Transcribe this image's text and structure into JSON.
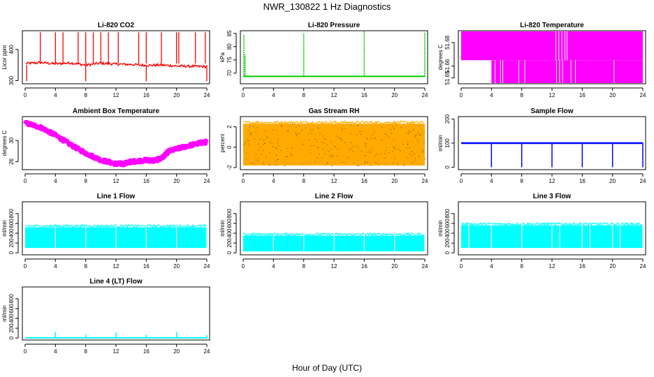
{
  "figure": {
    "title": "NWR_130822  1 Hz Diagnostics",
    "xlabel": "Hour of Day (UTC)"
  },
  "chart_data": [
    {
      "type": "line",
      "title": "Li-820 CO2",
      "ylabel": "Licor ppm",
      "color": "#ff0000",
      "xlim": [
        0,
        24
      ],
      "ylim": [
        290,
        460
      ],
      "yticks": [
        300,
        400
      ],
      "ytick_labels": [
        "300",
        "400"
      ],
      "xticks": [
        0,
        4,
        8,
        12,
        16,
        20,
        24
      ],
      "base_points": [
        [
          0.1,
          355
        ],
        [
          2,
          358
        ],
        [
          4,
          354
        ],
        [
          6,
          357
        ],
        [
          8,
          350
        ],
        [
          10,
          356
        ],
        [
          12,
          353
        ],
        [
          14,
          352
        ],
        [
          16,
          349
        ],
        [
          18,
          350
        ],
        [
          20,
          347
        ],
        [
          22,
          346
        ],
        [
          24,
          345
        ]
      ],
      "spikes_up": [
        2,
        4,
        5,
        7,
        8,
        9,
        10,
        11,
        12.3,
        15,
        16,
        18,
        20,
        20.3,
        22.5,
        23.8
      ],
      "spike_up_value": 455,
      "spikes_down": [
        0.2,
        8,
        16,
        24
      ],
      "spike_down_value": 298
    },
    {
      "type": "line",
      "title": "Li-820 Pressure",
      "ylabel": "kPa",
      "color": "#00cc00",
      "xlim": [
        0,
        24
      ],
      "ylim": [
        66,
        86
      ],
      "yticks": [
        70,
        75,
        80,
        85
      ],
      "ytick_labels": [
        "70",
        "75",
        "80",
        "85"
      ],
      "xticks": [
        0,
        4,
        8,
        12,
        16,
        20,
        24
      ],
      "baseline": 68.8,
      "spikes": [
        [
          0.1,
          84.5
        ],
        [
          0.25,
          77
        ],
        [
          8,
          85
        ],
        [
          16,
          86
        ],
        [
          24,
          85.5
        ]
      ]
    },
    {
      "type": "band",
      "title": "Li-820 Temperature",
      "ylabel": "degrees C",
      "color": "#ff00ff",
      "xlim": [
        0,
        24
      ],
      "ylim": [
        51.645,
        51.69
      ],
      "yticks": [
        51.65,
        51.66,
        51.68
      ],
      "ytick_labels": [
        "51.65",
        "51.66",
        "51.68"
      ],
      "xticks": [
        0,
        4,
        8,
        12,
        16,
        20,
        24
      ],
      "upper_band": [
        0,
        24,
        51.665,
        51.69
      ],
      "lower_band": [
        4,
        24,
        51.645,
        51.665
      ]
    },
    {
      "type": "line",
      "title": "Ambient Box Temperature",
      "ylabel": "degrees C",
      "color": "#ff00ff",
      "xlim": [
        0,
        24
      ],
      "ylim": [
        24.5,
        34.5
      ],
      "yticks": [
        26,
        30
      ],
      "ytick_labels": [
        "26",
        "30"
      ],
      "xticks": [
        0,
        4,
        8,
        12,
        16,
        20,
        24
      ],
      "points": [
        [
          0,
          33.3
        ],
        [
          2,
          32.5
        ],
        [
          4,
          31
        ],
        [
          6,
          29.2
        ],
        [
          8,
          27.6
        ],
        [
          10,
          26.3
        ],
        [
          12,
          25.6
        ],
        [
          13,
          25.6
        ],
        [
          14,
          26
        ],
        [
          16,
          26.3
        ],
        [
          17,
          26.2
        ],
        [
          18,
          26.6
        ],
        [
          19,
          28
        ],
        [
          21,
          28.8
        ],
        [
          23,
          29.5
        ],
        [
          24,
          29.7
        ]
      ],
      "noise": 0.6
    },
    {
      "type": "band",
      "title": "Gas Stream RH",
      "ylabel": "percent",
      "color": "#ffaa00",
      "xlim": [
        0,
        24
      ],
      "ylim": [
        -2.2,
        3
      ],
      "yticks": [
        -2,
        0,
        2
      ],
      "ytick_labels": [
        "-2",
        "0",
        "2"
      ],
      "xticks": [
        0,
        4,
        8,
        12,
        16,
        20,
        24
      ],
      "band": [
        0,
        24,
        -1.8,
        2.3
      ],
      "noise_color": "#886600"
    },
    {
      "type": "line",
      "title": "Sample Flow",
      "ylabel": "ml/min",
      "color": "#0000ff",
      "xlim": [
        0,
        24
      ],
      "ylim": [
        -10,
        210
      ],
      "yticks": [
        0,
        100,
        200
      ],
      "ytick_labels": [
        "0",
        "100",
        "200"
      ],
      "xticks": [
        0,
        4,
        8,
        12,
        16,
        20,
        24
      ],
      "baseline": 100,
      "dips": [
        4,
        8,
        12,
        16,
        20,
        24
      ],
      "dip_value": 0
    },
    {
      "type": "band",
      "title": "Line 1 Flow",
      "ylabel": "ml/min",
      "color": "#00ffff",
      "xlim": [
        0,
        24
      ],
      "ylim": [
        -40,
        1040
      ],
      "yticks": [
        0,
        200,
        400,
        600,
        800
      ],
      "ytick_labels": [
        "0",
        "200",
        "400",
        "600",
        "800"
      ],
      "xticks": [
        0,
        4,
        8,
        12,
        16,
        20,
        24
      ],
      "band": [
        0,
        24,
        100,
        520
      ],
      "gaps": [
        4,
        8,
        12,
        16,
        20,
        24
      ]
    },
    {
      "type": "band",
      "title": "Line 2 Flow",
      "ylabel": "ml/min",
      "color": "#00ffff",
      "xlim": [
        0,
        24
      ],
      "ylim": [
        -40,
        1040
      ],
      "yticks": [
        0,
        200,
        400,
        600,
        800
      ],
      "ytick_labels": [
        "0",
        "200",
        "400",
        "600",
        "800"
      ],
      "xticks": [
        0,
        4,
        8,
        12,
        16,
        20,
        24
      ],
      "band": [
        0,
        24,
        30,
        350
      ],
      "gaps": [
        4,
        8,
        12,
        16,
        20,
        24
      ]
    },
    {
      "type": "band",
      "title": "Line 3 Flow",
      "ylabel": "ml/min",
      "color": "#00ffff",
      "xlim": [
        0,
        24
      ],
      "ylim": [
        -40,
        1040
      ],
      "yticks": [
        0,
        200,
        400,
        600,
        800
      ],
      "ytick_labels": [
        "0",
        "200",
        "400",
        "600",
        "800"
      ],
      "xticks": [
        0,
        4,
        8,
        12,
        16,
        20,
        24
      ],
      "band": [
        0,
        24,
        100,
        560
      ],
      "gaps": [
        1,
        4,
        8,
        12,
        13,
        16,
        17,
        20,
        21,
        24
      ]
    },
    {
      "type": "line",
      "title": "Line 4 (LT) Flow",
      "ylabel": "ml/min",
      "color": "#00ffff",
      "xlim": [
        0,
        24
      ],
      "ylim": [
        -40,
        1040
      ],
      "yticks": [
        0,
        200,
        400,
        600,
        800
      ],
      "ytick_labels": [
        "0",
        "200",
        "400",
        "600",
        "800"
      ],
      "xticks": [
        0,
        4,
        8,
        12,
        16,
        20,
        24
      ],
      "baseline": 5,
      "spikes": [
        [
          4,
          120
        ],
        [
          8,
          70
        ],
        [
          12,
          110
        ],
        [
          16,
          65
        ],
        [
          20,
          120
        ],
        [
          24,
          60
        ]
      ]
    }
  ]
}
